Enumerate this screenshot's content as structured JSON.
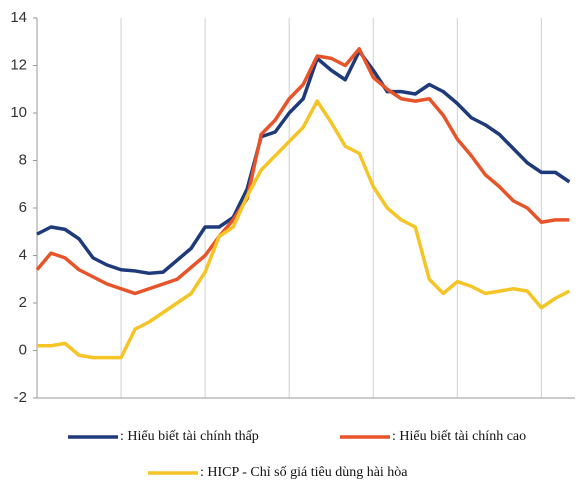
{
  "chart_data": {
    "type": "line",
    "x": [
      0,
      1,
      2,
      3,
      4,
      5,
      6,
      7,
      8,
      9,
      10,
      11,
      12,
      13,
      14,
      15,
      16,
      17,
      18,
      19,
      20,
      21,
      22,
      23,
      24,
      25,
      26,
      27,
      28,
      29,
      30,
      31,
      32,
      33,
      34,
      35,
      36,
      37,
      38
    ],
    "xlim": [
      0,
      38.4
    ],
    "xticks": [
      6,
      12,
      18,
      24,
      30,
      36
    ],
    "ylim": [
      -2,
      14
    ],
    "yticks": [
      -2,
      0,
      2,
      4,
      6,
      8,
      10,
      12,
      14
    ],
    "grid": true,
    "series": [
      {
        "name": ": Hiểu biết tài chính thấp",
        "color": "#1f3a7a",
        "values": [
          4.9,
          5.2,
          5.1,
          4.7,
          3.9,
          3.6,
          3.4,
          3.35,
          3.25,
          3.3,
          3.8,
          4.3,
          5.2,
          5.2,
          5.6,
          6.8,
          9.0,
          9.2,
          10.0,
          10.6,
          12.3,
          11.8,
          11.4,
          12.6,
          11.8,
          10.9,
          10.9,
          10.8,
          11.2,
          10.9,
          10.4,
          9.8,
          9.5,
          9.1,
          8.5,
          7.9,
          7.5,
          7.5,
          7.1
        ]
      },
      {
        "name": ": Hiểu biết tài chính cao",
        "color": "#e8542a",
        "values": [
          3.4,
          4.1,
          3.9,
          3.4,
          3.1,
          2.8,
          2.6,
          2.4,
          2.6,
          2.8,
          3.0,
          3.5,
          4.0,
          4.8,
          5.5,
          6.4,
          9.1,
          9.7,
          10.6,
          11.2,
          12.4,
          12.3,
          12.0,
          12.7,
          11.5,
          11.0,
          10.6,
          10.5,
          10.6,
          9.9,
          8.9,
          8.2,
          7.4,
          6.9,
          6.3,
          6.0,
          5.4,
          5.5,
          5.5
        ]
      },
      {
        "name": ": HICP - Chỉ số giá tiêu dùng hài hòa",
        "color": "#f5c426",
        "values": [
          0.2,
          0.2,
          0.3,
          -0.2,
          -0.3,
          -0.3,
          -0.3,
          0.9,
          1.2,
          1.6,
          2.0,
          2.4,
          3.3,
          4.8,
          5.2,
          6.5,
          7.6,
          8.2,
          8.8,
          9.4,
          10.5,
          9.6,
          8.6,
          8.3,
          6.9,
          6.0,
          5.5,
          5.2,
          3.0,
          2.4,
          2.9,
          2.7,
          2.4,
          2.5,
          2.6,
          2.5,
          1.8,
          2.2,
          2.5
        ]
      }
    ]
  }
}
